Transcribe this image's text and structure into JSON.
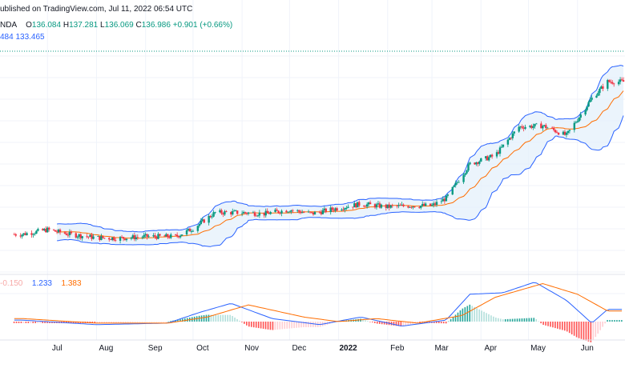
{
  "header": {
    "published": "ublished on TradingView.com, Jul 11, 2022 06:54 UTC",
    "symbol_tail": "NDA",
    "open_label": "O",
    "open": "136.084",
    "high_label": "H",
    "high": "137.281",
    "low_label": "L",
    "low": "136.069",
    "close_label": "C",
    "close": "136.986",
    "change": "+0.901 (+0.66%)",
    "bb_values": [
      "484",
      "133.465"
    ]
  },
  "macd_legend": {
    "histogram": "-0.150",
    "macd": "1.233",
    "signal": "1.383"
  },
  "colors": {
    "up": "#089981",
    "down": "#f23645",
    "bb_band": "#2962ff",
    "bb_fill": "#e3f0fb",
    "bb_basis": "#ff6d00",
    "macd_line": "#2962ff",
    "signal_line": "#ff6d00",
    "hist_up_strong": "#26a69a",
    "hist_up_weak": "#b2dfdb",
    "hist_down_strong": "#ff5252",
    "hist_down_weak": "#ffcdd2",
    "grid": "#f0f3fa",
    "dotted_line": "#089981"
  },
  "chart_data": {
    "type": "candlestick",
    "title": "",
    "x_tick_labels": [
      "Jul",
      "Aug",
      "Sep",
      "Oct",
      "Nov",
      "Dec",
      "2022",
      "Feb",
      "Mar",
      "Apr",
      "May",
      "Jun"
    ],
    "x_range": [
      "2021-06",
      "2022-07"
    ],
    "y_range": [
      105,
      140
    ],
    "y_axis_labels": "not visible (cropped)",
    "grid": true,
    "series": [
      {
        "name": "Price",
        "kind": "candles",
        "close_path": [
          {
            "x": "2021-06-15",
            "y": 110.2
          },
          {
            "x": "2021-07-01",
            "y": 111.0
          },
          {
            "x": "2021-07-15",
            "y": 110.2
          },
          {
            "x": "2021-08-01",
            "y": 109.6
          },
          {
            "x": "2021-08-15",
            "y": 109.5
          },
          {
            "x": "2021-09-01",
            "y": 109.8
          },
          {
            "x": "2021-09-20",
            "y": 109.8
          },
          {
            "x": "2021-10-01",
            "y": 111.2
          },
          {
            "x": "2021-10-15",
            "y": 114.0
          },
          {
            "x": "2021-11-01",
            "y": 114.0
          },
          {
            "x": "2021-11-15",
            "y": 113.8
          },
          {
            "x": "2021-12-01",
            "y": 114.5
          },
          {
            "x": "2021-12-15",
            "y": 113.8
          },
          {
            "x": "2022-01-01",
            "y": 114.8
          },
          {
            "x": "2022-01-15",
            "y": 115.5
          },
          {
            "x": "2022-02-01",
            "y": 115.0
          },
          {
            "x": "2022-02-15",
            "y": 115.2
          },
          {
            "x": "2022-03-01",
            "y": 115.2
          },
          {
            "x": "2022-03-10",
            "y": 116.5
          },
          {
            "x": "2022-03-25",
            "y": 122.5
          },
          {
            "x": "2022-04-10",
            "y": 124.0
          },
          {
            "x": "2022-04-25",
            "y": 129.0
          },
          {
            "x": "2022-05-10",
            "y": 129.2
          },
          {
            "x": "2022-05-25",
            "y": 127.5
          },
          {
            "x": "2022-06-10",
            "y": 134.0
          },
          {
            "x": "2022-06-20",
            "y": 136.9
          }
        ]
      },
      {
        "name": "BB Upper",
        "kind": "line"
      },
      {
        "name": "BB Lower",
        "kind": "line"
      },
      {
        "name": "BB Basis",
        "kind": "line"
      }
    ],
    "macd_panel": {
      "series_names": [
        "Histogram",
        "MACD",
        "Signal"
      ],
      "x_range": [
        "2021-06",
        "2022-07"
      ],
      "y_range": [
        -1.5,
        2.8
      ],
      "macd_path": [
        {
          "x": "2021-06-15",
          "y": 0.1
        },
        {
          "x": "2021-08-01",
          "y": -0.2
        },
        {
          "x": "2021-09-15",
          "y": -0.1
        },
        {
          "x": "2021-10-05",
          "y": 0.6
        },
        {
          "x": "2021-10-25",
          "y": 1.2
        },
        {
          "x": "2021-11-20",
          "y": 0.2
        },
        {
          "x": "2021-12-20",
          "y": -0.2
        },
        {
          "x": "2022-01-15",
          "y": 0.3
        },
        {
          "x": "2022-02-10",
          "y": -0.3
        },
        {
          "x": "2022-03-10",
          "y": 0.1
        },
        {
          "x": "2022-03-25",
          "y": 1.8
        },
        {
          "x": "2022-04-15",
          "y": 1.9
        },
        {
          "x": "2022-05-05",
          "y": 2.6
        },
        {
          "x": "2022-05-25",
          "y": 1.4
        },
        {
          "x": "2022-06-10",
          "y": -0.1
        },
        {
          "x": "2022-06-20",
          "y": 0.8
        }
      ],
      "signal_path": [
        {
          "x": "2021-06-15",
          "y": 0.2
        },
        {
          "x": "2021-08-01",
          "y": -0.1
        },
        {
          "x": "2021-09-15",
          "y": -0.1
        },
        {
          "x": "2021-10-10",
          "y": 0.3
        },
        {
          "x": "2021-11-05",
          "y": 1.1
        },
        {
          "x": "2021-12-10",
          "y": 0.3
        },
        {
          "x": "2022-01-01",
          "y": 0.0
        },
        {
          "x": "2022-01-25",
          "y": 0.2
        },
        {
          "x": "2022-02-20",
          "y": -0.1
        },
        {
          "x": "2022-03-20",
          "y": 0.4
        },
        {
          "x": "2022-04-10",
          "y": 1.6
        },
        {
          "x": "2022-05-10",
          "y": 2.5
        },
        {
          "x": "2022-06-01",
          "y": 1.8
        },
        {
          "x": "2022-06-20",
          "y": 0.7
        }
      ]
    }
  }
}
